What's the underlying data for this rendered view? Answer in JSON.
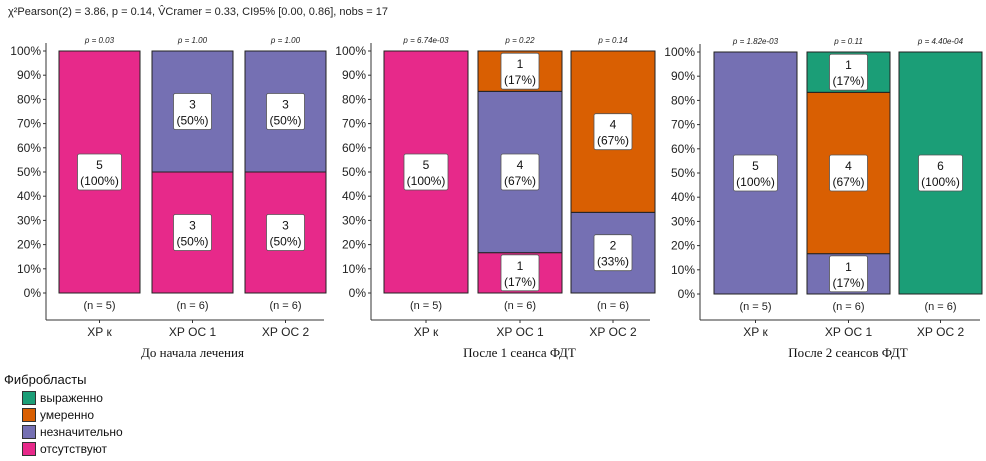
{
  "stats_line": "χ²Pearson(2) = 3.86, p = 0.14, V̂Cramer = 0.33, CI95% [0.00, 0.86], nobs = 17",
  "chart_data": [
    {
      "type": "bar",
      "subtype": "stacked-percent",
      "title": "До начала лечения",
      "categories": [
        "ХР к",
        "ХР ОС 1",
        "ХР ОС 2"
      ],
      "pvalues": [
        "p = 0.03",
        "p = 1.00",
        "p = 1.00"
      ],
      "n_labels": [
        "(n = 5)",
        "(n = 6)",
        "(n = 6)"
      ],
      "series": [
        {
          "name": "отсутствуют",
          "color": "#E7298A",
          "counts": [
            5,
            3,
            3
          ],
          "pct": [
            "(100%)",
            "(50%)",
            "(50%)"
          ]
        },
        {
          "name": "незначительно",
          "color": "#7570B3",
          "counts": [
            0,
            3,
            3
          ],
          "pct": [
            "",
            "(50%)",
            "(50%)"
          ]
        },
        {
          "name": "умеренно",
          "color": "#D95F02",
          "counts": [
            0,
            0,
            0
          ],
          "pct": [
            "",
            "",
            ""
          ]
        },
        {
          "name": "выраженно",
          "color": "#1B9E77",
          "counts": [
            0,
            0,
            0
          ],
          "pct": [
            "",
            "",
            ""
          ]
        }
      ],
      "y_ticks": [
        "0%",
        "10%",
        "20%",
        "30%",
        "40%",
        "50%",
        "60%",
        "70%",
        "80%",
        "90%",
        "100%"
      ],
      "ylim": [
        0,
        100
      ],
      "grid": false
    },
    {
      "type": "bar",
      "subtype": "stacked-percent",
      "title": "После 1 сеанса ФДТ",
      "categories": [
        "ХР к",
        "ХР ОС 1",
        "ХР ОС 2"
      ],
      "pvalues": [
        "p = 6.74e-03",
        "p = 0.22",
        "p = 0.14"
      ],
      "n_labels": [
        "(n = 5)",
        "(n = 6)",
        "(n = 6)"
      ],
      "series": [
        {
          "name": "отсутствуют",
          "color": "#E7298A",
          "counts": [
            5,
            1,
            0
          ],
          "pct": [
            "(100%)",
            "(17%)",
            ""
          ]
        },
        {
          "name": "незначительно",
          "color": "#7570B3",
          "counts": [
            0,
            4,
            2
          ],
          "pct": [
            "",
            "(67%)",
            "(33%)"
          ]
        },
        {
          "name": "умеренно",
          "color": "#D95F02",
          "counts": [
            0,
            1,
            4
          ],
          "pct": [
            "",
            "(17%)",
            "(67%)"
          ]
        },
        {
          "name": "выраженно",
          "color": "#1B9E77",
          "counts": [
            0,
            0,
            0
          ],
          "pct": [
            "",
            "",
            ""
          ]
        }
      ],
      "y_ticks": [
        "0%",
        "10%",
        "20%",
        "30%",
        "40%",
        "50%",
        "60%",
        "70%",
        "80%",
        "90%",
        "100%"
      ],
      "ylim": [
        0,
        100
      ],
      "grid": false
    },
    {
      "type": "bar",
      "subtype": "stacked-percent",
      "title": "После 2 сеансов ФДТ",
      "categories": [
        "ХР к",
        "ХР ОС 1",
        "ХР ОС 2"
      ],
      "pvalues": [
        "p = 1.82e-03",
        "p = 0.11",
        "p = 4.40e-04"
      ],
      "n_labels": [
        "(n = 5)",
        "(n = 6)",
        "(n = 6)"
      ],
      "series": [
        {
          "name": "отсутствуют",
          "color": "#E7298A",
          "counts": [
            0,
            0,
            0
          ],
          "pct": [
            "",
            "",
            ""
          ]
        },
        {
          "name": "незначительно",
          "color": "#7570B3",
          "counts": [
            5,
            1,
            0
          ],
          "pct": [
            "(100%)",
            "(17%)",
            ""
          ]
        },
        {
          "name": "умеренно",
          "color": "#D95F02",
          "counts": [
            0,
            4,
            0
          ],
          "pct": [
            "",
            "(67%)",
            ""
          ]
        },
        {
          "name": "выраженно",
          "color": "#1B9E77",
          "counts": [
            0,
            1,
            6
          ],
          "pct": [
            "",
            "(17%)",
            "(100%)"
          ]
        }
      ],
      "y_ticks": [
        "0%",
        "10%",
        "20%",
        "30%",
        "40%",
        "50%",
        "60%",
        "70%",
        "80%",
        "90%",
        "100%"
      ],
      "ylim": [
        0,
        100
      ],
      "grid": false
    }
  ],
  "legend": {
    "title": "Фибробласты",
    "placement": "bottom-left",
    "items": [
      {
        "label": "выраженно",
        "color": "#1B9E77"
      },
      {
        "label": "умеренно",
        "color": "#D95F02"
      },
      {
        "label": "незначительно",
        "color": "#7570B3"
      },
      {
        "label": "отсутствуют",
        "color": "#E7298A"
      }
    ]
  }
}
